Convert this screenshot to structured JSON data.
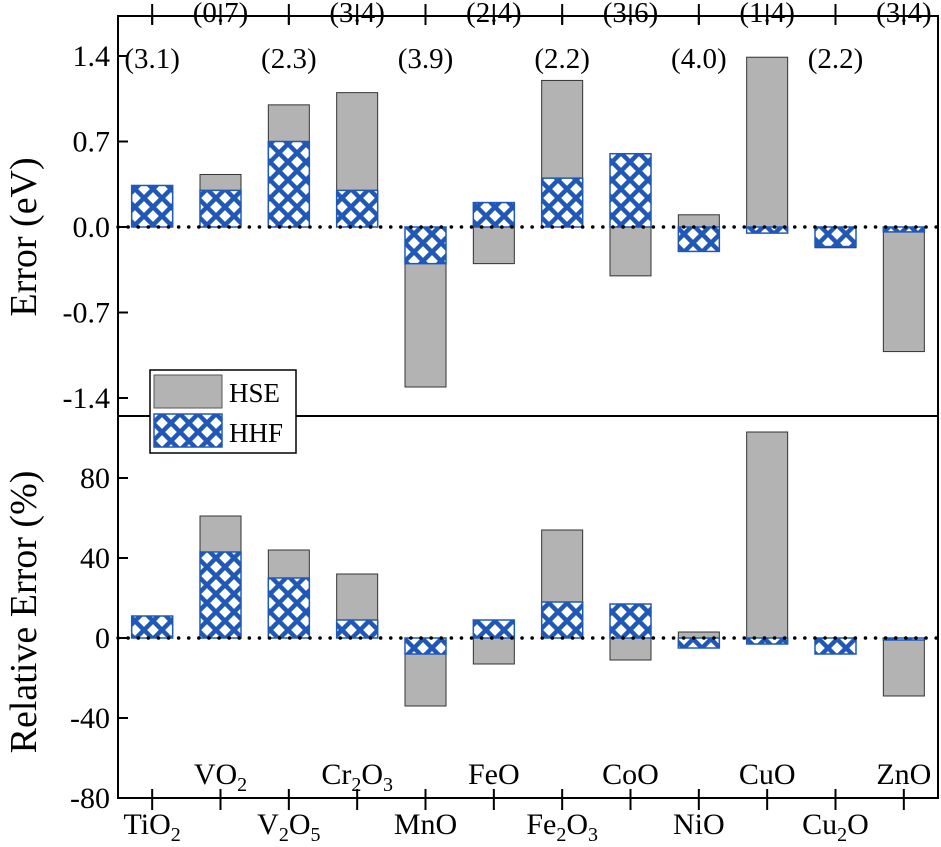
{
  "colors": {
    "hse": "#b3b3b3",
    "hhf": "#2058b8",
    "axis": "#000000"
  },
  "legend": {
    "hse_label": "HSE",
    "hhf_label": "HHF",
    "position": "center-left"
  },
  "chart_data": [
    {
      "type": "bar",
      "panel": "top",
      "ylabel": "Error (eV)",
      "ylim": [
        -1.55,
        1.45
      ],
      "yticks": [
        "1.4",
        "0.7",
        "0.0",
        "-0.7",
        "-1.4"
      ],
      "ytick_values": [
        1.4,
        0.7,
        0.0,
        -0.7,
        -1.4
      ],
      "categories": [
        "TiO2",
        "VO2",
        "V2O5",
        "Cr2O3",
        "MnO",
        "FeO",
        "Fe2O3",
        "CoO",
        "NiO",
        "CuO",
        "Cu2O",
        "ZnO"
      ],
      "top_annotations": [
        "(3.1)",
        "(0.7)",
        "(2.3)",
        "(3.4)",
        "(3.9)",
        "(2.4)",
        "(2.2)",
        "(3.6)",
        "(4.0)",
        "(1.4)",
        "(2.2)",
        "(3.4)"
      ],
      "series": [
        {
          "name": "HSE",
          "values": [
            0.33,
            0.43,
            1.0,
            1.1,
            -1.31,
            -0.3,
            1.2,
            -0.4,
            0.1,
            1.39,
            -0.17,
            -1.02
          ]
        },
        {
          "name": "HHF",
          "values": [
            0.34,
            0.3,
            0.7,
            0.3,
            -0.3,
            0.2,
            0.4,
            0.6,
            -0.2,
            -0.05,
            -0.16,
            -0.04
          ]
        }
      ]
    },
    {
      "type": "bar",
      "panel": "bottom",
      "ylabel": "Relative Error (%)",
      "ylim": [
        -80,
        103
      ],
      "yticks": [
        "80",
        "40",
        "0",
        "-40",
        "-80"
      ],
      "ytick_values": [
        80,
        40,
        0,
        -40,
        -80
      ],
      "categories": [
        "TiO2",
        "VO2",
        "V2O5",
        "Cr2O3",
        "MnO",
        "FeO",
        "Fe2O3",
        "CoO",
        "NiO",
        "CuO",
        "Cu2O",
        "ZnO"
      ],
      "series": [
        {
          "name": "HSE",
          "values": [
            11,
            61,
            44,
            32,
            -34,
            -13,
            54,
            -11,
            3,
            103,
            -8,
            -29
          ]
        },
        {
          "name": "HHF",
          "values": [
            11,
            43,
            30,
            9,
            -8,
            9,
            18,
            17,
            -5,
            -3,
            -8,
            -1
          ]
        }
      ]
    }
  ],
  "x_tick_labels": [
    {
      "base": "TiO",
      "sub": "2",
      "tail": "",
      "sub2": ""
    },
    {
      "base": "VO",
      "sub": "2",
      "tail": "",
      "sub2": ""
    },
    {
      "base": "V",
      "sub": "2",
      "tail": "O",
      "sub2": "5"
    },
    {
      "base": "Cr",
      "sub": "2",
      "tail": "O",
      "sub2": "3"
    },
    {
      "base": "MnO",
      "sub": "",
      "tail": "",
      "sub2": ""
    },
    {
      "base": "FeO",
      "sub": "",
      "tail": "",
      "sub2": ""
    },
    {
      "base": "Fe",
      "sub": "2",
      "tail": "O",
      "sub2": "3"
    },
    {
      "base": "CoO",
      "sub": "",
      "tail": "",
      "sub2": ""
    },
    {
      "base": "NiO",
      "sub": "",
      "tail": "",
      "sub2": ""
    },
    {
      "base": "CuO",
      "sub": "",
      "tail": "",
      "sub2": ""
    },
    {
      "base": "Cu",
      "sub": "2",
      "tail": "O",
      "sub2": ""
    },
    {
      "base": "ZnO",
      "sub": "",
      "tail": "",
      "sub2": ""
    }
  ]
}
